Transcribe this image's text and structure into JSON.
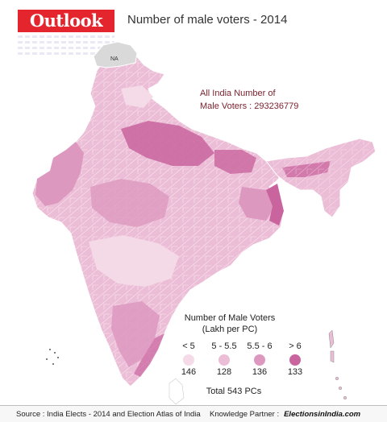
{
  "header": {
    "logo_text": "Outlook",
    "title": "Number of male voters - 2014"
  },
  "map": {
    "na_label": "NA",
    "summary_line1": "All India Number of",
    "summary_line2": "Male Voters : 293236779",
    "colors": {
      "lt5": "#f5dbe8",
      "r5_55": "#ecbdd6",
      "r55_6": "#dd98bf",
      "gt6": "#c9649e",
      "na": "#d9d9d9",
      "border": "#ffffff"
    }
  },
  "legend": {
    "title_line1": "Number of Male Voters",
    "title_line2": "(Lakh per PC)",
    "items": [
      {
        "label": "< 5",
        "count": "146",
        "color": "#f5dbe8"
      },
      {
        "label": "5 - 5.5",
        "count": "128",
        "color": "#ecbdd6"
      },
      {
        "label": "5.5 - 6",
        "count": "136",
        "color": "#dd98bf"
      },
      {
        "label": "> 6",
        "count": "133",
        "color": "#c9649e"
      }
    ],
    "total": "Total 543 PCs"
  },
  "footer": {
    "source": "Source : India Elects - 2014 and Election Atlas of India",
    "partner_label": "Knowledge Partner :",
    "partner_brand": "ElectionsinIndia.com"
  }
}
